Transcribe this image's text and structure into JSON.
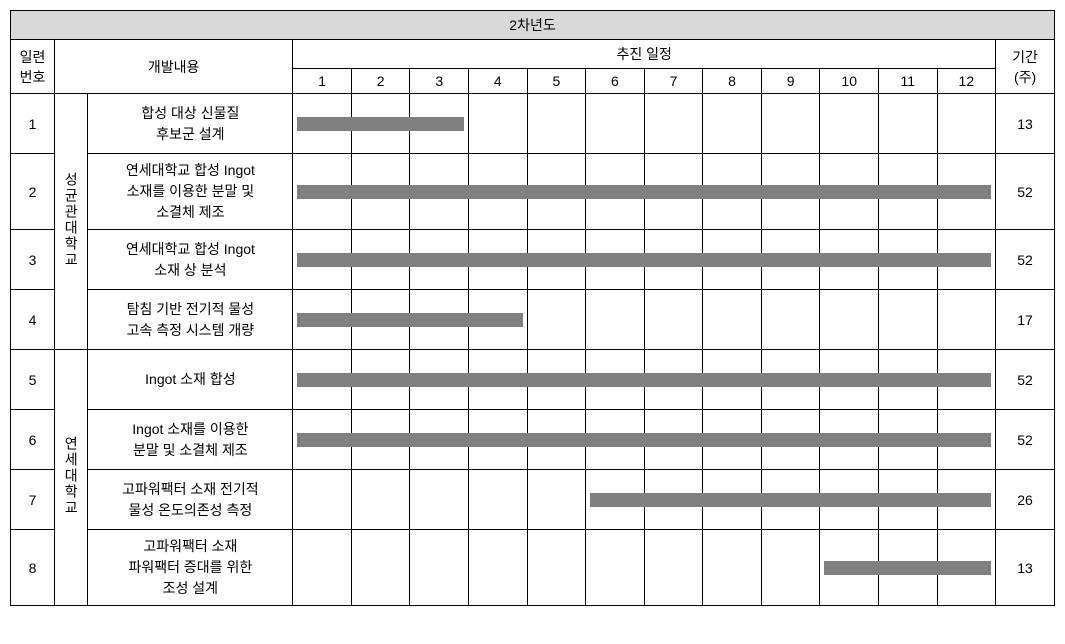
{
  "title": "2차년도",
  "headers": {
    "seq": "일련\n번호",
    "content": "개발내용",
    "schedule": "추진 일정",
    "duration": "기간\n(주)"
  },
  "months": [
    "1",
    "2",
    "3",
    "4",
    "5",
    "6",
    "7",
    "8",
    "9",
    "10",
    "11",
    "12"
  ],
  "groups": [
    {
      "name": "성균관대학교",
      "rowspan": 4
    },
    {
      "name": "연세대학교",
      "rowspan": 4
    }
  ],
  "rows": [
    {
      "seq": "1",
      "desc": "합성 대상 신물질\n후보군 설계",
      "duration": "13",
      "bar_start": 1,
      "bar_end": 3
    },
    {
      "seq": "2",
      "desc": "연세대학교 합성 Ingot\n소재를 이용한 분말 및\n소결체 제조",
      "duration": "52",
      "bar_start": 1,
      "bar_end": 12
    },
    {
      "seq": "3",
      "desc": "연세대학교 합성 Ingot\n소재 상 분석",
      "duration": "52",
      "bar_start": 1,
      "bar_end": 12
    },
    {
      "seq": "4",
      "desc": "탐침 기반 전기적 물성\n고속 측정 시스템 개량",
      "duration": "17",
      "bar_start": 1,
      "bar_end": 4
    },
    {
      "seq": "5",
      "desc": "Ingot 소재 합성",
      "duration": "52",
      "bar_start": 1,
      "bar_end": 12
    },
    {
      "seq": "6",
      "desc": "Ingot 소재를 이용한\n분말 및 소결체 제조",
      "duration": "52",
      "bar_start": 1,
      "bar_end": 12
    },
    {
      "seq": "7",
      "desc": "고파워팩터 소재 전기적\n물성 온도의존성 측정",
      "duration": "26",
      "bar_start": 6,
      "bar_end": 12
    },
    {
      "seq": "8",
      "desc": "고파워팩터 소재\n파워팩터 증대를 위한\n조성 설계",
      "duration": "13",
      "bar_start": 10,
      "bar_end": 12
    }
  ],
  "month_cell_width": 56,
  "bar_color": "#808080"
}
